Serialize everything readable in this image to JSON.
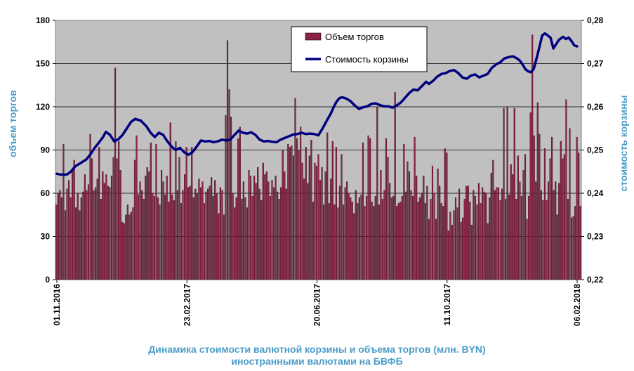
{
  "chart_data": {
    "type": "bar+line",
    "title": "Динамика стоимости валютной корзины и объема торгов (млн. BYN) иностранными валютами на БВФБ",
    "title_lines": [
      "Динамика стоимости валютной корзины и объема торгов (млн. BYN)",
      "иностранными валютами на БВФБ"
    ],
    "ylabel_left": "объем торгов",
    "ylabel_right": "стоимость корзины",
    "ylim_left": [
      0,
      180
    ],
    "ylim_right": [
      0.22,
      0.28
    ],
    "yticks_left": [
      "0",
      "30",
      "60",
      "90",
      "120",
      "150",
      "180"
    ],
    "yticks_right": [
      "0,22",
      "0,23",
      "0,24",
      "0,25",
      "0,26",
      "0,27",
      "0,28"
    ],
    "xticks": [
      "01.11.2016",
      "23.02.2017",
      "20.06.2017",
      "11.10.2017",
      "06.02.2018"
    ],
    "grid": "horizontal",
    "legend_position": "top-center",
    "background_color": "#c0c0c0",
    "bar_color": "#8b2346",
    "line_color": "#000080",
    "series": [
      {
        "name": "Объем торгов",
        "type": "bar",
        "axis": "left",
        "values": [
          52,
          60,
          62,
          57,
          94,
          48,
          63,
          69,
          57,
          76,
          83,
          50,
          60,
          48,
          57,
          61,
          73,
          62,
          66,
          101,
          84,
          62,
          64,
          70,
          92,
          56,
          75,
          67,
          73,
          65,
          64,
          72,
          85,
          147,
          84,
          96,
          76,
          40,
          39,
          45,
          52,
          45,
          47,
          50,
          83,
          100,
          59,
          68,
          62,
          56,
          72,
          78,
          75,
          95,
          60,
          58,
          94,
          57,
          52,
          76,
          68,
          59,
          72,
          54,
          109,
          59,
          55,
          96,
          62,
          85,
          53,
          62,
          73,
          92,
          64,
          65,
          92,
          57,
          63,
          60,
          70,
          64,
          68,
          53,
          61,
          63,
          65,
          71,
          58,
          69,
          60,
          46,
          64,
          62,
          45,
          114,
          166,
          132,
          113,
          60,
          50,
          57,
          98,
          106,
          56,
          68,
          57,
          50,
          76,
          72,
          58,
          72,
          67,
          78,
          63,
          55,
          81,
          73,
          75,
          68,
          58,
          69,
          64,
          72,
          61,
          56,
          64,
          90,
          75,
          63,
          94,
          92,
          93,
          86,
          126,
          98,
          90,
          106,
          81,
          70,
          92,
          67,
          86,
          97,
          54,
          81,
          79,
          87,
          69,
          78,
          52,
          75,
          102,
          53,
          70,
          96,
          52,
          92,
          50,
          65,
          87,
          52,
          64,
          68,
          60,
          57,
          54,
          46,
          62,
          53,
          57,
          59,
          95,
          51,
          58,
          100,
          98,
          54,
          51,
          58,
          120,
          52,
          76,
          56,
          62,
          98,
          85,
          67,
          57,
          58,
          130,
          51,
          53,
          54,
          58,
          94,
          61,
          82,
          75,
          62,
          58,
          99,
          72,
          54,
          57,
          60,
          72,
          53,
          65,
          42,
          56,
          79,
          60,
          42,
          77,
          65,
          53,
          51,
          91,
          88,
          34,
          47,
          38,
          48,
          57,
          50,
          63,
          40,
          43,
          56,
          65,
          65,
          54,
          38,
          62,
          58,
          52,
          67,
          53,
          64,
          61,
          60,
          39,
          57,
          74,
          83,
          62,
          64,
          64,
          55,
          63,
          119,
          56,
          120,
          59,
          80,
          73,
          119,
          56,
          86,
          68,
          58,
          76,
          87,
          42,
          58,
          116,
          170,
          100,
          68,
          123,
          101,
          62,
          55,
          91,
          55,
          68,
          84,
          99,
          62,
          68,
          45,
          67,
          96,
          84,
          87,
          125,
          56,
          105,
          43,
          44,
          51,
          99,
          88,
          51
        ]
      },
      {
        "name": "Стоимость корзины",
        "type": "line",
        "axis": "right",
        "points": [
          [
            0,
            0.2445
          ],
          [
            3,
            0.2443
          ],
          [
            7,
            0.2443
          ],
          [
            10,
            0.245
          ],
          [
            13,
            0.2462
          ],
          [
            17,
            0.247
          ],
          [
            21,
            0.2478
          ],
          [
            24,
            0.249
          ],
          [
            27,
            0.2505
          ],
          [
            30,
            0.2517
          ],
          [
            33,
            0.253
          ],
          [
            35,
            0.2542
          ],
          [
            38,
            0.2535
          ],
          [
            41,
            0.252
          ],
          [
            44,
            0.2525
          ],
          [
            47,
            0.2535
          ],
          [
            50,
            0.255
          ],
          [
            53,
            0.2565
          ],
          [
            56,
            0.2572
          ],
          [
            60,
            0.2568
          ],
          [
            64,
            0.2555
          ],
          [
            67,
            0.254
          ],
          [
            70,
            0.253
          ],
          [
            73,
            0.254
          ],
          [
            76,
            0.2535
          ],
          [
            79,
            0.252
          ],
          [
            82,
            0.2508
          ],
          [
            85,
            0.25
          ],
          [
            88,
            0.2505
          ],
          [
            91,
            0.2495
          ],
          [
            94,
            0.2489
          ],
          [
            97,
            0.2495
          ],
          [
            100,
            0.2508
          ],
          [
            103,
            0.2522
          ],
          [
            106,
            0.252
          ],
          [
            109,
            0.2521
          ],
          [
            112,
            0.2518
          ],
          [
            115,
            0.252
          ],
          [
            118,
            0.2524
          ],
          [
            121,
            0.2522
          ],
          [
            124,
            0.2524
          ],
          [
            127,
            0.2535
          ],
          [
            130,
            0.2545
          ],
          [
            133,
            0.254
          ],
          [
            136,
            0.2538
          ],
          [
            139,
            0.2541
          ],
          [
            142,
            0.2535
          ],
          [
            145,
            0.2524
          ],
          [
            148,
            0.252
          ],
          [
            151,
            0.2521
          ],
          [
            154,
            0.2519
          ],
          [
            157,
            0.2518
          ],
          [
            160,
            0.2524
          ],
          [
            163,
            0.2528
          ],
          [
            166,
            0.2532
          ],
          [
            169,
            0.2536
          ],
          [
            172,
            0.2537
          ],
          [
            175,
            0.254
          ],
          [
            178,
            0.2537
          ],
          [
            181,
            0.2538
          ],
          [
            184,
            0.2537
          ],
          [
            187,
            0.2534
          ],
          [
            190,
            0.255
          ],
          [
            193,
            0.2568
          ],
          [
            196,
            0.2585
          ],
          [
            198,
            0.26
          ],
          [
            200,
            0.2612
          ],
          [
            202,
            0.262
          ],
          [
            204,
            0.2622
          ],
          [
            207,
            0.2619
          ],
          [
            210,
            0.2613
          ],
          [
            213,
            0.2603
          ],
          [
            216,
            0.2595
          ],
          [
            219,
            0.2599
          ],
          [
            222,
            0.2601
          ],
          [
            225,
            0.2607
          ],
          [
            228,
            0.2608
          ],
          [
            231,
            0.2604
          ],
          [
            234,
            0.2601
          ],
          [
            237,
            0.2601
          ],
          [
            240,
            0.2598
          ],
          [
            243,
            0.2603
          ],
          [
            246,
            0.261
          ],
          [
            249,
            0.2621
          ],
          [
            252,
            0.2632
          ],
          [
            255,
            0.264
          ],
          [
            258,
            0.2638
          ],
          [
            261,
            0.2648
          ],
          [
            264,
            0.2658
          ],
          [
            266,
            0.2653
          ],
          [
            269,
            0.266
          ],
          [
            272,
            0.267
          ],
          [
            275,
            0.2676
          ],
          [
            278,
            0.2678
          ],
          [
            281,
            0.2683
          ],
          [
            284,
            0.2685
          ],
          [
            287,
            0.2678
          ],
          [
            290,
            0.2668
          ],
          [
            293,
            0.2665
          ],
          [
            296,
            0.2672
          ],
          [
            299,
            0.2675
          ],
          [
            302,
            0.2668
          ],
          [
            305,
            0.2672
          ],
          [
            308,
            0.2676
          ],
          [
            311,
            0.269
          ],
          [
            314,
            0.2698
          ],
          [
            317,
            0.2703
          ],
          [
            320,
            0.2712
          ],
          [
            323,
            0.2715
          ],
          [
            326,
            0.2717
          ],
          [
            329,
            0.2712
          ],
          [
            331,
            0.2707
          ],
          [
            333,
            0.2698
          ],
          [
            335,
            0.2687
          ],
          [
            337,
            0.2682
          ],
          [
            339,
            0.268
          ],
          [
            341,
            0.2688
          ],
          [
            343,
            0.2712
          ],
          [
            345,
            0.2738
          ],
          [
            347,
            0.2765
          ],
          [
            349,
            0.277
          ],
          [
            351,
            0.2765
          ],
          [
            353,
            0.276
          ],
          [
            355,
            0.2735
          ],
          [
            357,
            0.2745
          ],
          [
            359,
            0.2755
          ],
          [
            362,
            0.2762
          ],
          [
            364,
            0.2757
          ],
          [
            366,
            0.276
          ],
          [
            368,
            0.2752
          ],
          [
            370,
            0.2742
          ],
          [
            372,
            0.274
          ]
        ]
      }
    ]
  }
}
